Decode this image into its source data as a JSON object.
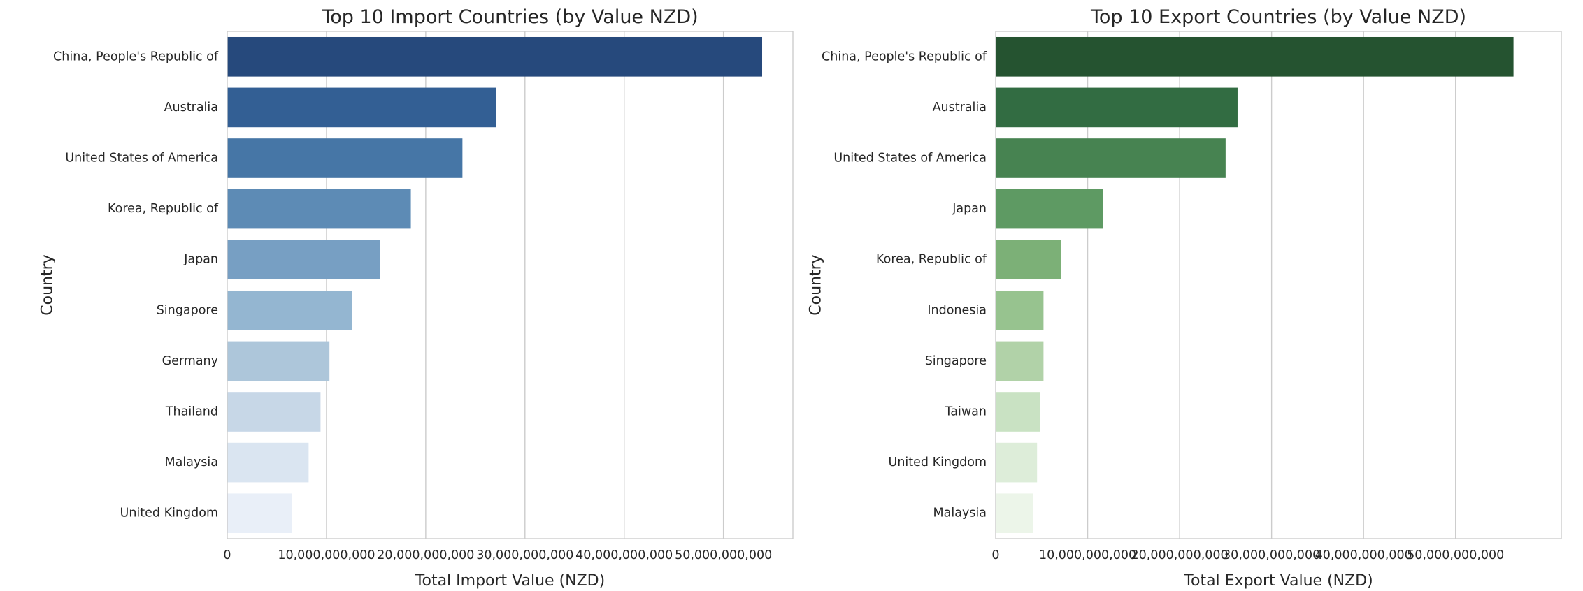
{
  "chart_data": [
    {
      "type": "bar",
      "orientation": "horizontal",
      "title": "Top 10 Import Countries (by Value NZD)",
      "xlabel": "Total Import Value (NZD)",
      "ylabel": "Country",
      "xlim": [
        0,
        57000000000
      ],
      "xticks": [
        0,
        10000000000,
        20000000000,
        30000000000,
        40000000000,
        50000000000
      ],
      "xtick_labels": [
        "0",
        "10,000,000,000",
        "20,000,000,000",
        "30,000,000,000",
        "40,000,000,000",
        "50,000,000,000"
      ],
      "grid": "vertical",
      "categories": [
        "China, People's Republic of",
        "Australia",
        "United States of America",
        "Korea, Republic of",
        "Japan",
        "Singapore",
        "Germany",
        "Thailand",
        "Malaysia",
        "United Kingdom"
      ],
      "values": [
        53900000000,
        27100000000,
        23700000000,
        18500000000,
        15400000000,
        12600000000,
        10300000000,
        9400000000,
        8200000000,
        6500000000
      ],
      "colors": [
        "#26497c",
        "#335f94",
        "#4676a6",
        "#5d8bb5",
        "#779fc3",
        "#94b6d1",
        "#adc6da",
        "#c7d7e7",
        "#dae5f1",
        "#e9eff8"
      ]
    },
    {
      "type": "bar",
      "orientation": "horizontal",
      "title": "Top 10 Export Countries (by Value NZD)",
      "xlabel": "Total Export Value (NZD)",
      "ylabel": "Country",
      "xlim": [
        0,
        61500000000
      ],
      "xticks": [
        0,
        10000000000,
        20000000000,
        30000000000,
        40000000000,
        50000000000
      ],
      "xtick_labels": [
        "0",
        "10,000,000,000",
        "20,000,000,000",
        "30,000,000,000",
        "40,000,000,000",
        "50,000,000,000"
      ],
      "grid": "vertical",
      "categories": [
        "China, People's Republic of",
        "Australia",
        "United States of America",
        "Japan",
        "Korea, Republic of",
        "Indonesia",
        "Singapore",
        "Taiwan",
        "United Kingdom",
        "Malaysia"
      ],
      "values": [
        56300000000,
        26300000000,
        25000000000,
        11700000000,
        7100000000,
        5200000000,
        5200000000,
        4800000000,
        4500000000,
        4100000000
      ],
      "colors": [
        "#255330",
        "#326c42",
        "#478351",
        "#5e9a63",
        "#7cb077",
        "#97c38f",
        "#b1d2a8",
        "#c9e2c3",
        "#ddedd9",
        "#ecf5e9"
      ]
    }
  ]
}
